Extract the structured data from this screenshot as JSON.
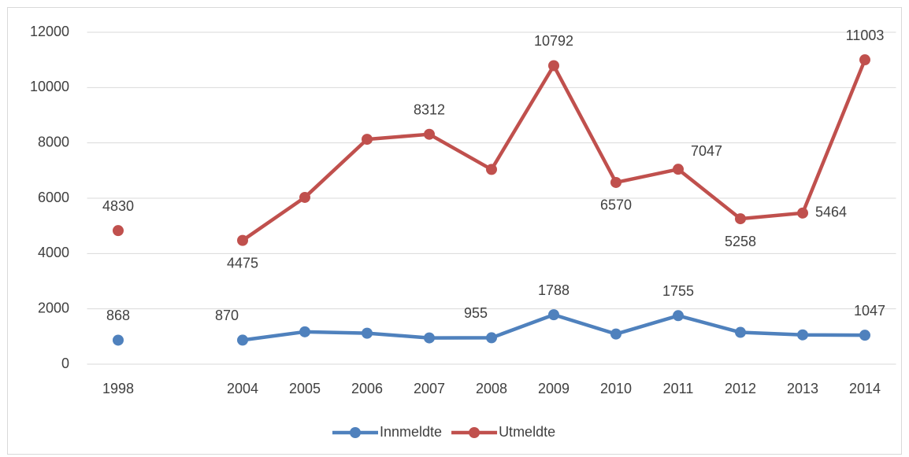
{
  "chart_data": {
    "type": "line",
    "categories": [
      "1998",
      null,
      "2004",
      "2005",
      "2006",
      "2007",
      "2008",
      "2009",
      "2010",
      "2011",
      "2012",
      "2013",
      "2014"
    ],
    "series": [
      {
        "name": "Innmeldte",
        "color": "#4f81bd",
        "values": [
          868,
          null,
          870,
          1170,
          1120,
          950,
          955,
          1788,
          1090,
          1755,
          1150,
          1060,
          1047
        ],
        "value_labels": [
          "868",
          null,
          "870",
          null,
          null,
          null,
          "955",
          "1788",
          null,
          "1755",
          null,
          null,
          "1047"
        ]
      },
      {
        "name": "Utmeldte",
        "color": "#c0504d",
        "values": [
          4830,
          null,
          4475,
          6030,
          8130,
          8312,
          7040,
          10792,
          6570,
          7047,
          5258,
          5464,
          11003
        ],
        "value_labels": [
          "4830",
          null,
          "4475",
          null,
          null,
          "8312",
          null,
          "10792",
          "6570",
          "7047",
          "5258",
          "5464",
          "11003"
        ]
      }
    ],
    "ylim": [
      0,
      12000
    ],
    "yticks": [
      0,
      2000,
      4000,
      6000,
      8000,
      10000,
      12000
    ],
    "grid": true,
    "legend": "bottom"
  }
}
